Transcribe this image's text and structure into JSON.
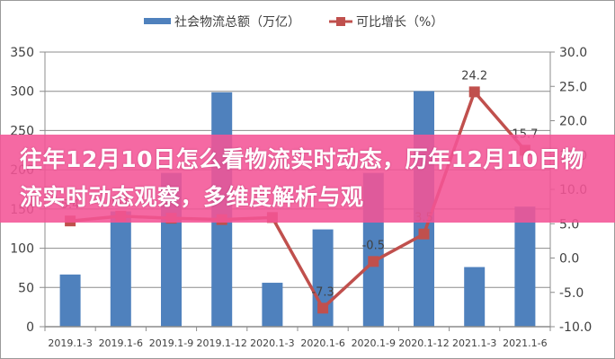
{
  "overlay": {
    "title": "往年12月10日怎么看物流实时动态，历年12月10日物流实时动态观察，多维度解析与观"
  },
  "colors": {
    "bar": "#4f81bd",
    "line": "#c0504d",
    "overlay": "#f45496",
    "grid": "#8c8c8c"
  },
  "chart_data": {
    "type": "bar",
    "title": "",
    "xlabel": "",
    "ylabel": "",
    "y2label": "",
    "categories": [
      "2019.1-3",
      "2019.1-6",
      "2019.1-9",
      "2019.1-12",
      "2020.1-3",
      "2020.1-6",
      "2020.1-9",
      "2020.1-12",
      "2021.1-3",
      "2021.1-6"
    ],
    "series": [
      {
        "name": "社会物流总额（万亿）",
        "type": "bar",
        "axis": "left",
        "values": [
          66.5,
          147,
          196,
          298.7,
          56,
          124,
          196,
          300.3,
          76,
          153
        ]
      },
      {
        "name": "可比增长（%）",
        "type": "line",
        "axis": "right",
        "values": [
          5.4,
          6.1,
          5.8,
          5.6,
          5.9,
          -7.3,
          -0.5,
          3.5,
          24.2,
          15.7
        ],
        "labels": [
          "5.4",
          "6.1",
          "",
          "",
          "",
          "-7.3",
          "-0.5",
          "3.5",
          "24.2",
          "15.7"
        ]
      }
    ],
    "ylim": [
      0,
      350
    ],
    "y2lim": [
      -10,
      30
    ],
    "yticks": [
      "0",
      "50",
      "100",
      "150",
      "200",
      "250",
      "300",
      "350"
    ],
    "y2ticks": [
      "-10.0",
      "-5.0",
      "0.0",
      "5.0",
      "10.0",
      "15.0",
      "20.0",
      "25.0",
      "30.0"
    ],
    "legend": {
      "position": "top",
      "entries": [
        "社会物流总额（万亿）",
        "可比增长（%）"
      ]
    },
    "grid": true
  }
}
